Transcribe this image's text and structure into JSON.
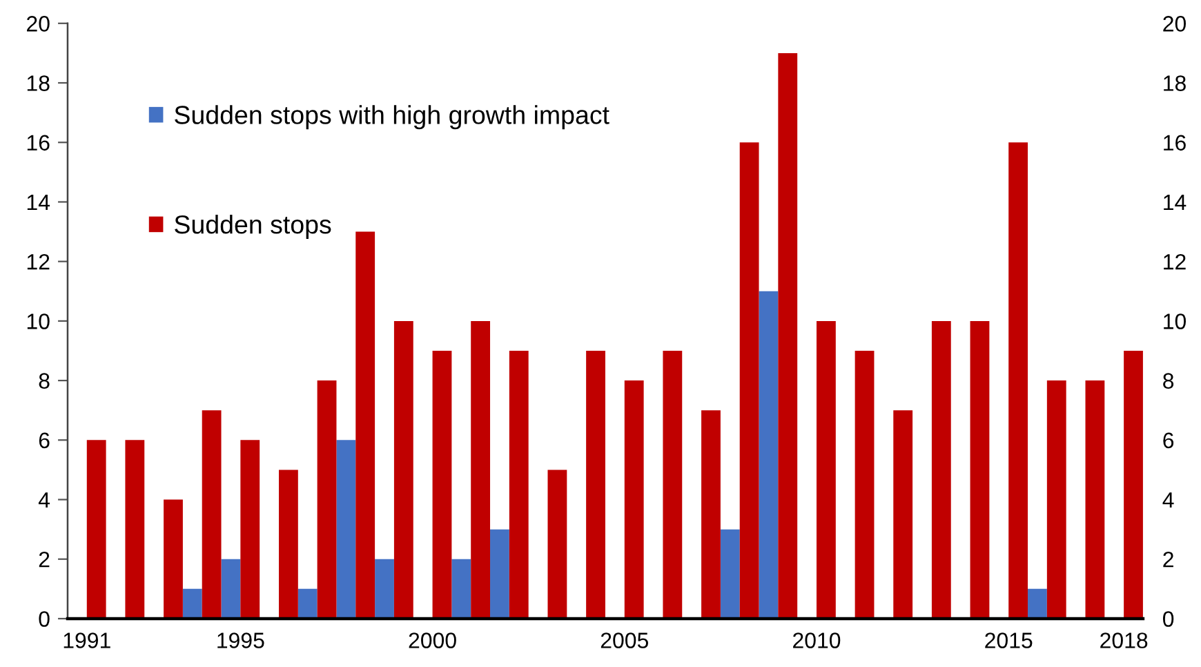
{
  "chart_data": {
    "type": "bar",
    "categories": [
      "1991",
      null,
      null,
      null,
      "1995",
      null,
      null,
      null,
      null,
      "2000",
      null,
      null,
      null,
      null,
      "2005",
      null,
      null,
      null,
      null,
      "2010",
      null,
      null,
      null,
      null,
      "2015",
      null,
      null,
      "2018"
    ],
    "series": [
      {
        "name": "Sudden stops with high growth impact",
        "color": "#4472c4",
        "values": [
          0,
          0,
          0,
          1,
          2,
          0,
          1,
          6,
          2,
          0,
          2,
          3,
          0,
          0,
          0,
          0,
          0,
          3,
          11,
          0,
          0,
          0,
          0,
          0,
          0,
          1,
          0,
          0
        ]
      },
      {
        "name": "Sudden stops",
        "color": "#c00000",
        "values": [
          6,
          6,
          4,
          7,
          6,
          5,
          8,
          13,
          10,
          9,
          10,
          9,
          5,
          9,
          8,
          9,
          7,
          16,
          19,
          10,
          9,
          7,
          10,
          10,
          16,
          8,
          8,
          9
        ]
      }
    ],
    "ylim": [
      0,
      20
    ],
    "yticks": [
      0,
      2,
      4,
      6,
      8,
      10,
      12,
      14,
      16,
      18,
      20
    ],
    "y2lim": [
      0,
      20
    ],
    "y2ticks": [
      0,
      2,
      4,
      6,
      8,
      10,
      12,
      14,
      16,
      18,
      20
    ],
    "legend": "top left"
  }
}
